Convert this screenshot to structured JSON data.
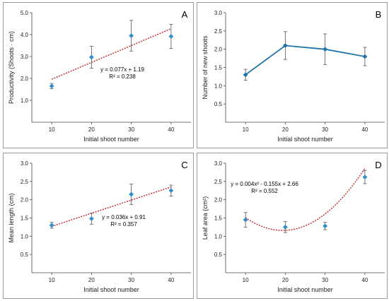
{
  "colors": {
    "marker": "#2e8fc8",
    "line_B": "#1e73a8",
    "trend": "#c62828",
    "errorbar": "#555555",
    "axis": "#444444"
  },
  "chart_data": [
    {
      "id": "A",
      "letter": "A",
      "type": "scatter",
      "xlabel": "Initial shoot number",
      "ylabel": "Productivity (Shoots · cm)",
      "x": [
        10,
        20,
        30,
        40
      ],
      "y": [
        1.65,
        2.97,
        3.95,
        3.92
      ],
      "err": [
        0.12,
        0.5,
        0.7,
        0.55
      ],
      "xlim": [
        5,
        45
      ],
      "ylim": [
        0,
        5
      ],
      "yticks": [
        "1.0",
        "2.0",
        "3.0",
        "4.0",
        "5.0"
      ],
      "xticks": [
        "10",
        "20",
        "30",
        "40"
      ],
      "trend": {
        "kind": "linear",
        "coef": [
          0.077,
          1.19
        ],
        "equation": "y = 0.077x + 1.19",
        "r2": "R² = 0.238"
      },
      "grid": false
    },
    {
      "id": "B",
      "letter": "B",
      "type": "line",
      "xlabel": "Initial shoot number",
      "ylabel": "Number of new shoots",
      "x": [
        10,
        20,
        30,
        40
      ],
      "y": [
        1.3,
        2.1,
        2.0,
        1.8
      ],
      "err": [
        0.15,
        0.38,
        0.42,
        0.25
      ],
      "xlim": [
        5,
        45
      ],
      "ylim": [
        0,
        3
      ],
      "yticks": [
        "0.5",
        "1.0",
        "1.5",
        "2.0",
        "2.5",
        "3.0"
      ],
      "xticks": [
        "10",
        "20",
        "30",
        "40"
      ],
      "grid": false
    },
    {
      "id": "C",
      "letter": "C",
      "type": "scatter",
      "xlabel": "Initial shoot number",
      "ylabel": "Mean length (cm)",
      "x": [
        10,
        20,
        30,
        40
      ],
      "y": [
        1.3,
        1.48,
        2.15,
        2.25
      ],
      "err": [
        0.08,
        0.15,
        0.28,
        0.15
      ],
      "xlim": [
        5,
        45
      ],
      "ylim": [
        0,
        3
      ],
      "yticks": [
        "0.5",
        "1.0",
        "1.5",
        "2.0",
        "2.5",
        "3.0"
      ],
      "xticks": [
        "10",
        "20",
        "30",
        "40"
      ],
      "trend": {
        "kind": "linear",
        "coef": [
          0.036,
          0.91
        ],
        "equation": "y = 0.036x + 0.91",
        "r2": "R² = 0.357"
      },
      "grid": false
    },
    {
      "id": "D",
      "letter": "D",
      "type": "scatter",
      "xlabel": "Initial shoot number",
      "ylabel": "Leaf area (cm²)",
      "x": [
        10,
        20,
        30,
        40
      ],
      "y": [
        1.45,
        1.25,
        1.28,
        2.62
      ],
      "err": [
        0.2,
        0.15,
        0.1,
        0.18
      ],
      "xlim": [
        5,
        45
      ],
      "ylim": [
        0,
        3
      ],
      "yticks": [
        "0.5",
        "1.0",
        "1.5",
        "2.0",
        "2.5",
        "3.0"
      ],
      "xticks": [
        "10",
        "20",
        "30",
        "40"
      ],
      "trend": {
        "kind": "poly2",
        "coef": [
          0.004,
          -0.155,
          2.66
        ],
        "equation": "y = 0.004x² - 0.155x + 2.66",
        "r2": "R² = 0.552"
      },
      "grid": false
    }
  ]
}
